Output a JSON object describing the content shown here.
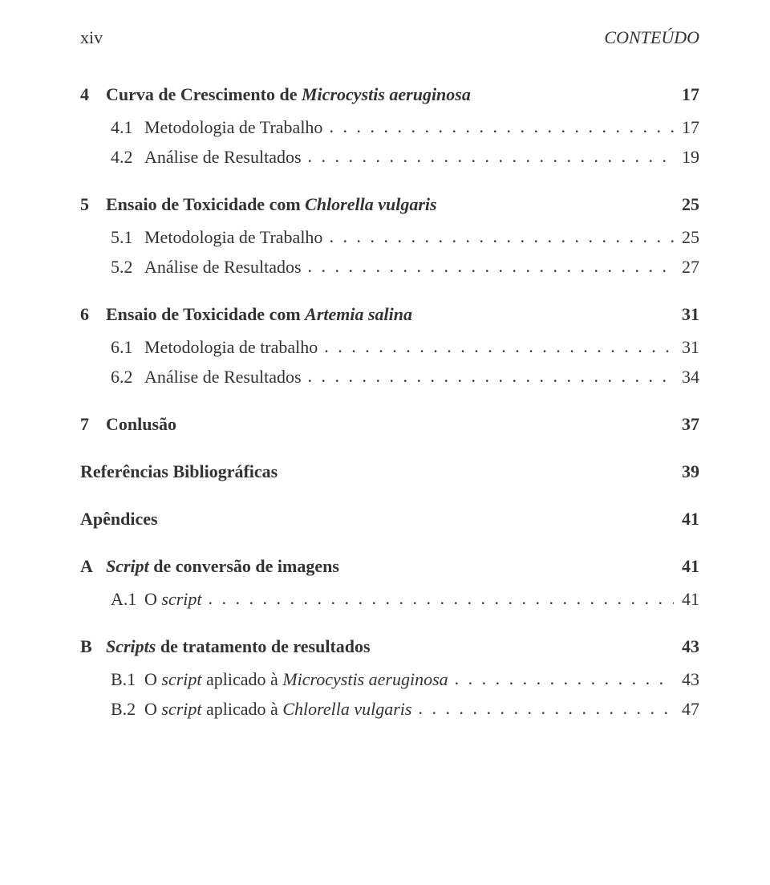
{
  "colors": {
    "text": "#333333",
    "background": "#ffffff"
  },
  "typography": {
    "font_family": "Times New Roman",
    "base_fontsize_pt": 16,
    "line_height": 1.5
  },
  "header": {
    "left": "xiv",
    "right": "CONTEÚDO"
  },
  "toc": [
    {
      "kind": "chapter",
      "num": "4",
      "title_plain": "Curva de Crescimento de ",
      "title_italic": "Microcystis aeruginosa",
      "page": "17",
      "bold": true,
      "leader": false
    },
    {
      "kind": "sub",
      "num": "4.1",
      "title_plain": "Metodologia de Trabalho",
      "title_italic": "",
      "page": "17",
      "bold": false,
      "leader": true
    },
    {
      "kind": "sub",
      "num": "4.2",
      "title_plain": "Análise de Resultados",
      "title_italic": "",
      "page": "19",
      "bold": false,
      "leader": true
    },
    {
      "kind": "chapter",
      "num": "5",
      "title_plain": "Ensaio de Toxicidade com ",
      "title_italic": "Chlorella vulgaris",
      "page": "25",
      "bold": true,
      "leader": false
    },
    {
      "kind": "sub",
      "num": "5.1",
      "title_plain": "Metodologia de Trabalho",
      "title_italic": "",
      "page": "25",
      "bold": false,
      "leader": true
    },
    {
      "kind": "sub",
      "num": "5.2",
      "title_plain": "Análise de Resultados",
      "title_italic": "",
      "page": "27",
      "bold": false,
      "leader": true
    },
    {
      "kind": "chapter",
      "num": "6",
      "title_plain": "Ensaio de Toxicidade com ",
      "title_italic": "Artemia salina",
      "page": "31",
      "bold": true,
      "leader": false
    },
    {
      "kind": "sub",
      "num": "6.1",
      "title_plain": "Metodologia de trabalho",
      "title_italic": "",
      "page": "31",
      "bold": false,
      "leader": true
    },
    {
      "kind": "sub",
      "num": "6.2",
      "title_plain": "Análise de Resultados",
      "title_italic": "",
      "page": "34",
      "bold": false,
      "leader": true
    },
    {
      "kind": "chapter",
      "num": "7",
      "title_plain": "Conlusão",
      "title_italic": "",
      "page": "37",
      "bold": true,
      "leader": false
    },
    {
      "kind": "heading",
      "num": "",
      "title_plain": "Referências Bibliográficas",
      "title_italic": "",
      "page": "39",
      "bold": true,
      "leader": false
    },
    {
      "kind": "heading",
      "num": "",
      "title_plain": "Apêndices",
      "title_italic": "",
      "page": "41",
      "bold": true,
      "leader": false
    },
    {
      "kind": "chapter",
      "num": "A",
      "title_plain": "",
      "title_italic": "Script",
      "title_plain2": " de conversão de imagens",
      "page": "41",
      "bold": true,
      "leader": false
    },
    {
      "kind": "sub",
      "num": "A.1",
      "title_plain": "O ",
      "title_italic": "script",
      "title_plain2": "",
      "page": "41",
      "bold": false,
      "leader": true
    },
    {
      "kind": "chapter",
      "num": "B",
      "title_plain": "",
      "title_italic": "Scripts",
      "title_plain2": " de tratamento de resultados",
      "page": "43",
      "bold": true,
      "leader": false
    },
    {
      "kind": "sub",
      "num": "B.1",
      "title_plain": "O ",
      "title_italic": "script",
      "title_plain2": " aplicado à ",
      "title_italic2": "Microcystis aeruginosa",
      "page": "43",
      "bold": false,
      "leader": true
    },
    {
      "kind": "sub",
      "num": "B.2",
      "title_plain": "O ",
      "title_italic": "script",
      "title_plain2": " aplicado à ",
      "title_italic2": "Chlorella vulgaris",
      "page": "47",
      "bold": false,
      "leader": true
    }
  ]
}
